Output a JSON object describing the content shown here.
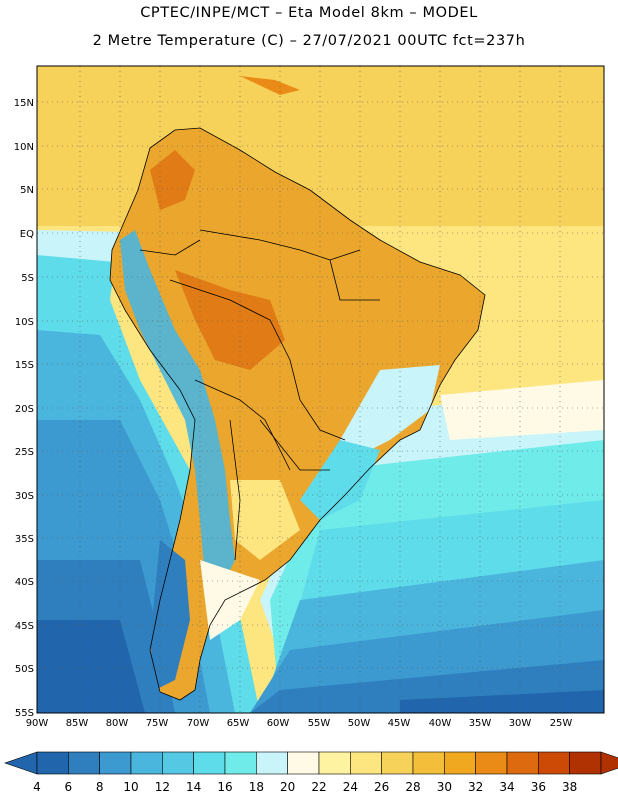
{
  "header": {
    "line1": "CPTEC/INPE/MCT –  Eta Model 8km – MODEL",
    "line2": "2 Metre Temperature (C) – 27/07/2021 00UTC fct=237h"
  },
  "map": {
    "lat_labels": [
      "15N",
      "10N",
      "5N",
      "EQ",
      "5S",
      "10S",
      "15S",
      "20S",
      "25S",
      "30S",
      "35S",
      "40S",
      "45S",
      "50S",
      "55S"
    ],
    "lon_labels": [
      "90W",
      "85W",
      "80W",
      "75W",
      "70W",
      "65W",
      "60W",
      "55W",
      "50W",
      "45W",
      "40W",
      "35W",
      "30W",
      "25W"
    ],
    "ocean_north_color": "#f7d25a",
    "land_warm_color": "#eba62e",
    "land_hot_color": "#e07b16",
    "ocean_cool_color": "#4fd3e6",
    "ocean_cold_color": "#2e73b8"
  },
  "colorbar": {
    "levels": [
      "4",
      "6",
      "8",
      "10",
      "12",
      "14",
      "16",
      "18",
      "20",
      "22",
      "24",
      "26",
      "28",
      "30",
      "32",
      "34",
      "36",
      "38"
    ],
    "colors": [
      "#2166ac",
      "#2f7fbf",
      "#3d9ad0",
      "#4bb6dd",
      "#55c8e3",
      "#5edcea",
      "#6fece9",
      "#c8f4fa",
      "#fffae6",
      "#fdf3a0",
      "#fde580",
      "#f7d25a",
      "#f3bf3a",
      "#efa81f",
      "#e98b16",
      "#dd6a0e",
      "#cc4a06",
      "#b03102"
    ],
    "under_color": "#2166ac",
    "over_color": "#b03102"
  }
}
